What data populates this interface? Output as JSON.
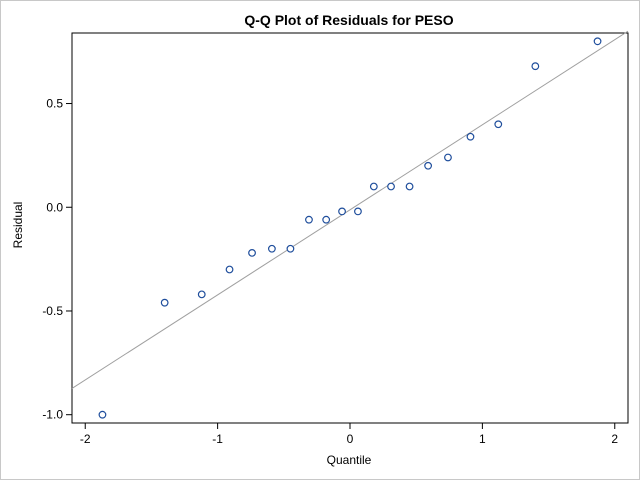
{
  "chart_data": {
    "type": "scatter",
    "title": "Q-Q Plot of Residuals for PESO",
    "xlabel": "Quantile",
    "ylabel": "Residual",
    "xlim": [
      -2.1,
      2.1
    ],
    "ylim": [
      -1.04,
      0.84
    ],
    "x_ticks": [
      -2,
      -1,
      0,
      1,
      2
    ],
    "x_tick_labels": [
      "-2",
      "-1",
      "0",
      "1",
      "2"
    ],
    "y_ticks": [
      -1.0,
      -0.5,
      0.0,
      0.5
    ],
    "y_tick_labels": [
      "-1.0",
      "-0.5",
      "0.0",
      "0.5"
    ],
    "grid": false,
    "colors": {
      "marker": "#1f4e9c",
      "reference_line": "#a0a0a0",
      "axis": "#000000"
    },
    "reference_line": {
      "intercept": -0.0124,
      "slope": 0.41
    },
    "points": [
      {
        "x": -1.87,
        "y": -1.0
      },
      {
        "x": -1.4,
        "y": -0.46
      },
      {
        "x": -1.12,
        "y": -0.42
      },
      {
        "x": -0.91,
        "y": -0.3
      },
      {
        "x": -0.74,
        "y": -0.22
      },
      {
        "x": -0.59,
        "y": -0.2
      },
      {
        "x": -0.45,
        "y": -0.2
      },
      {
        "x": -0.31,
        "y": -0.06
      },
      {
        "x": -0.18,
        "y": -0.06
      },
      {
        "x": -0.06,
        "y": -0.02
      },
      {
        "x": 0.06,
        "y": -0.02
      },
      {
        "x": 0.18,
        "y": 0.1
      },
      {
        "x": 0.31,
        "y": 0.1
      },
      {
        "x": 0.45,
        "y": 0.1
      },
      {
        "x": 0.59,
        "y": 0.2
      },
      {
        "x": 0.74,
        "y": 0.24
      },
      {
        "x": 0.91,
        "y": 0.34
      },
      {
        "x": 1.12,
        "y": 0.4
      },
      {
        "x": 1.4,
        "y": 0.68
      },
      {
        "x": 1.87,
        "y": 0.8
      }
    ]
  }
}
